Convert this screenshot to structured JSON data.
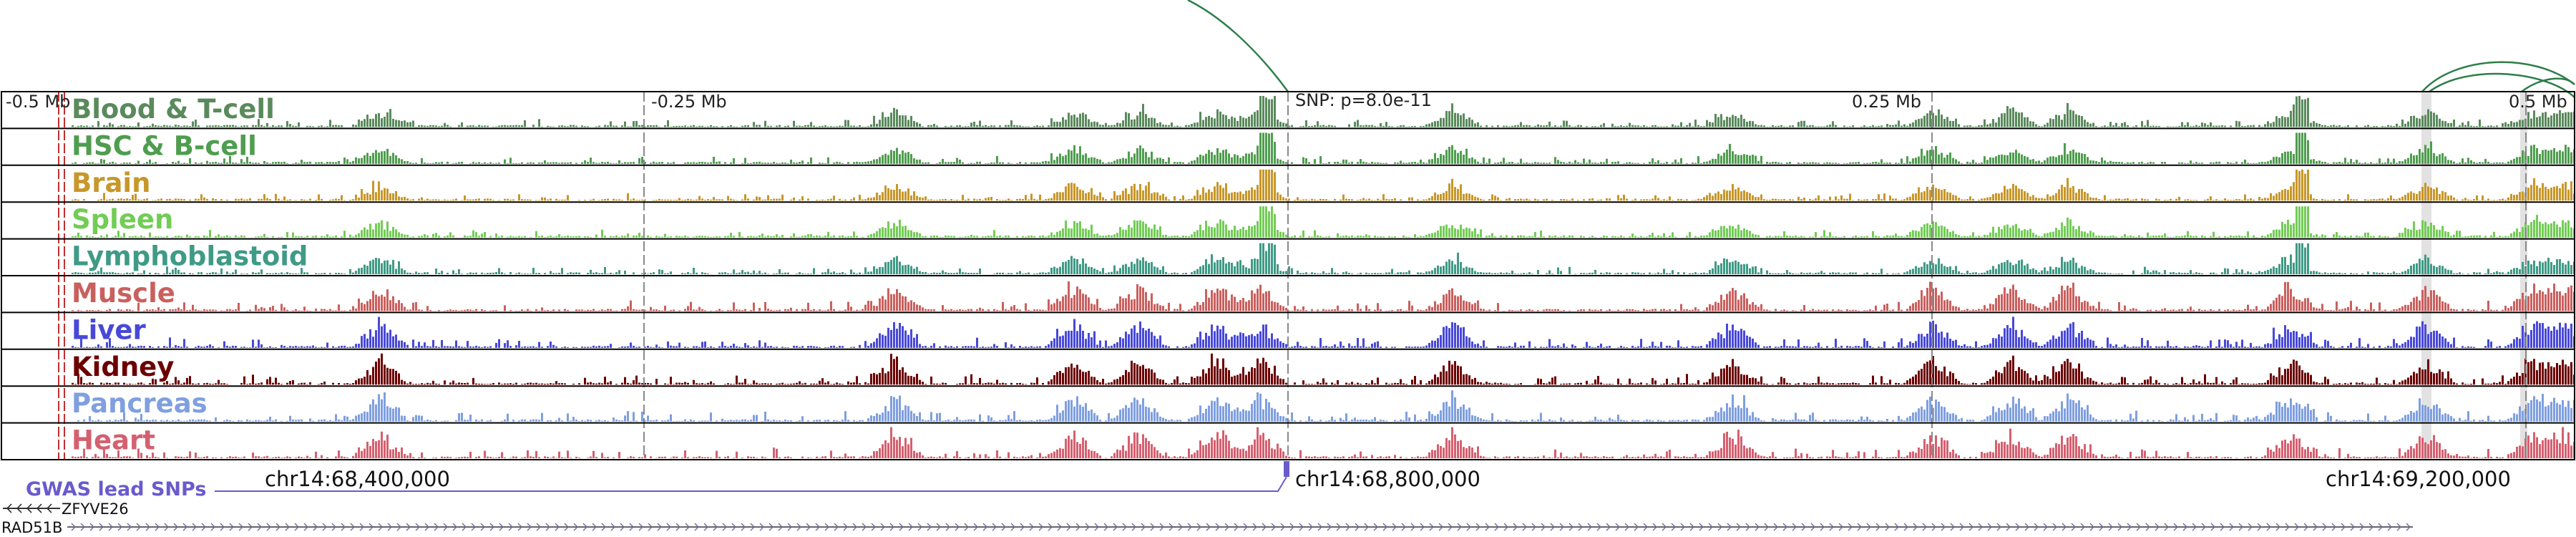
{
  "tracks": [
    {
      "name": "Blood & T-cell",
      "color": "#5a8a5c"
    },
    {
      "name": "HSC & B-cell",
      "color": "#4f9d4f"
    },
    {
      "name": "Brain",
      "color": "#c7972a"
    },
    {
      "name": "Spleen",
      "color": "#72cc55"
    },
    {
      "name": "Lymphoblastoid",
      "color": "#3f9a86"
    },
    {
      "name": "Muscle",
      "color": "#c9605e"
    },
    {
      "name": "Liver",
      "color": "#4848d8"
    },
    {
      "name": "Kidney",
      "color": "#6b0000"
    },
    {
      "name": "Pancreas",
      "color": "#7f9fdf"
    },
    {
      "name": "Heart",
      "color": "#d4606f"
    }
  ],
  "ruler": {
    "minus_half": "-0.5 Mb",
    "minus_quarter": "-0.25 Mb",
    "plus_quarter": "0.25 Mb",
    "plus_half": "0.5 Mb"
  },
  "snp_label": "SNP: p=8.0e-11",
  "coordinates": {
    "left": "chr14:68,400,000",
    "middle": "chr14:68,800,000",
    "right": "chr14:69,200,000"
  },
  "gwas_track_label": "GWAS lead SNPs",
  "genes": [
    {
      "name": "ZFYVE26",
      "strand": "-"
    },
    {
      "name": "RAD51B",
      "strand": "+"
    }
  ],
  "colors": {
    "gwas": "#6a5acd",
    "dashed_line": "#c03030",
    "highlight": "#dcdcdc",
    "arc": "#2e7d4a",
    "frame": "#000000"
  }
}
